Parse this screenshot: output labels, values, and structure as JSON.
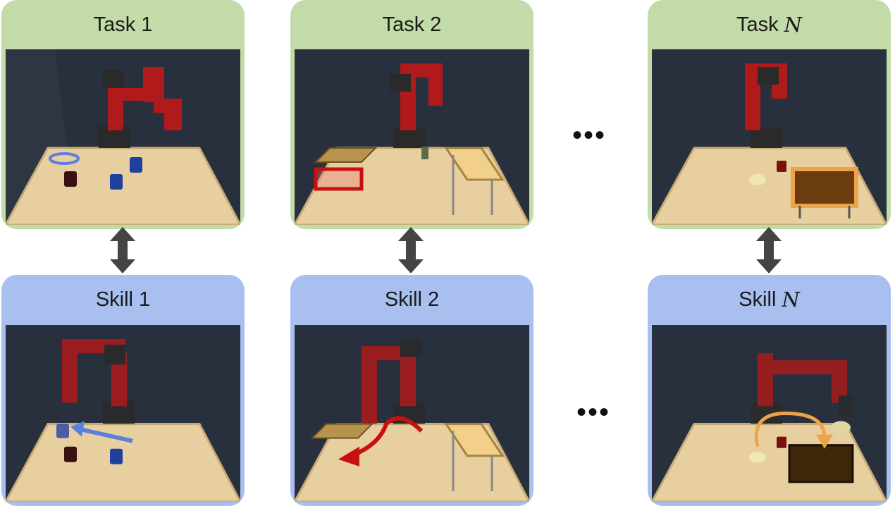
{
  "tasks": [
    {
      "label": "Task",
      "index": "1"
    },
    {
      "label": "Task",
      "index": "2"
    },
    {
      "label": "Task",
      "index": "N"
    }
  ],
  "skills": [
    {
      "label": "Skill",
      "index": "1"
    },
    {
      "label": "Skill",
      "index": "2"
    },
    {
      "label": "Skill",
      "index": "N"
    }
  ],
  "ellipsis": "•••",
  "colors": {
    "task_header": "#c2dba8",
    "skill_header": "#a9bff0",
    "scene_background": "#28303d",
    "table_surface": "#e8cfa0",
    "robot": "#b01a1a",
    "skill1_arrow": "#5b7fde",
    "skill2_arrow": "#c81010",
    "skillN_arrow": "#eca349",
    "connector_arrow": "#444444"
  },
  "icons": [
    "double-arrow-icon",
    "ellipsis-icon",
    "robot-arm-icon"
  ]
}
